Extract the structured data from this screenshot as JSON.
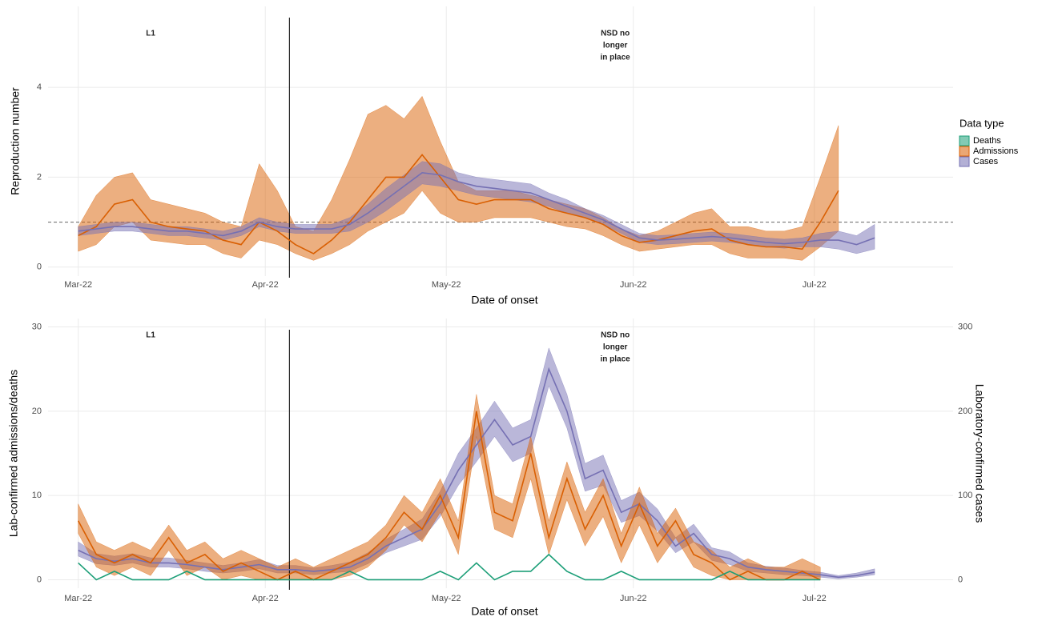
{
  "chart_data": [
    {
      "type": "line",
      "xlabel": "Date of onset",
      "ylabel": "Reproduction number",
      "x": [
        0,
        3,
        6,
        9,
        12,
        15,
        18,
        21,
        24,
        27,
        30,
        33,
        36,
        39,
        42,
        45,
        48,
        51,
        54,
        57,
        60,
        63,
        66,
        69,
        72,
        75,
        78,
        81,
        84,
        87,
        90,
        93,
        96,
        99,
        102,
        105,
        108,
        111,
        114,
        117,
        120,
        123,
        126,
        129,
        132
      ],
      "xlim": [
        -5,
        145
      ],
      "xticks": [
        {
          "value": 0,
          "label": "Mar-22"
        },
        {
          "value": 31,
          "label": "Apr-22"
        },
        {
          "value": 61,
          "label": "May-22"
        },
        {
          "value": 92,
          "label": "Jun-22"
        },
        {
          "value": 122,
          "label": "Jul-22"
        }
      ],
      "ylim": [
        -0.2,
        5.8
      ],
      "yticks": [
        0,
        2,
        4
      ],
      "grid": true,
      "hline": 1,
      "vline": 35,
      "annotations": [
        {
          "x": 12,
          "y": 5.2,
          "lines": [
            "L1"
          ]
        },
        {
          "x": 89,
          "y": 5.2,
          "lines": [
            "NSD no",
            "longer",
            "in place"
          ]
        }
      ],
      "legend": {
        "title": "Data type",
        "position": "right",
        "entries": [
          {
            "name": "Deaths",
            "color": "#1b9e77"
          },
          {
            "name": "Admissions",
            "color": "#d95f02"
          },
          {
            "name": "Cases",
            "color": "#7570b3"
          }
        ]
      },
      "series": [
        {
          "name": "Admissions",
          "color": "#d95f02",
          "values": [
            0.7,
            0.9,
            1.4,
            1.5,
            1.0,
            0.9,
            0.85,
            0.8,
            0.6,
            0.5,
            1.0,
            0.8,
            0.5,
            0.3,
            0.6,
            1.0,
            1.5,
            2.0,
            2.0,
            2.5,
            2.0,
            1.5,
            1.4,
            1.5,
            1.5,
            1.5,
            1.3,
            1.2,
            1.1,
            0.95,
            0.7,
            0.55,
            0.6,
            0.7,
            0.8,
            0.85,
            0.6,
            0.5,
            0.45,
            0.45,
            0.4,
            1.0,
            1.7,
            null,
            null
          ],
          "lower": [
            0.35,
            0.5,
            0.9,
            1.0,
            0.6,
            0.55,
            0.5,
            0.5,
            0.3,
            0.2,
            0.6,
            0.5,
            0.3,
            0.15,
            0.3,
            0.5,
            0.8,
            1.0,
            1.2,
            1.7,
            1.2,
            1.0,
            1.0,
            1.1,
            1.1,
            1.1,
            1.0,
            0.9,
            0.85,
            0.7,
            0.5,
            0.35,
            0.4,
            0.45,
            0.5,
            0.5,
            0.3,
            0.2,
            0.2,
            0.2,
            0.15,
            0.45,
            0.8,
            null,
            null
          ],
          "upper": [
            0.9,
            1.6,
            2.0,
            2.1,
            1.5,
            1.4,
            1.3,
            1.2,
            1.0,
            0.9,
            2.3,
            1.7,
            0.9,
            0.8,
            1.5,
            2.4,
            3.4,
            3.6,
            3.3,
            3.8,
            2.8,
            1.9,
            1.7,
            1.7,
            1.7,
            1.6,
            1.5,
            1.4,
            1.3,
            1.1,
            0.85,
            0.7,
            0.8,
            1.0,
            1.2,
            1.3,
            0.9,
            0.9,
            0.8,
            0.8,
            0.9,
            2.0,
            3.15,
            null,
            null
          ]
        },
        {
          "name": "Cases",
          "color": "#7570b3",
          "values": [
            0.8,
            0.85,
            0.9,
            0.9,
            0.85,
            0.8,
            0.8,
            0.75,
            0.7,
            0.8,
            1.0,
            0.9,
            0.85,
            0.85,
            0.85,
            0.95,
            1.2,
            1.5,
            1.8,
            2.1,
            2.05,
            1.9,
            1.8,
            1.75,
            1.7,
            1.65,
            1.5,
            1.35,
            1.2,
            1.05,
            0.85,
            0.65,
            0.6,
            0.62,
            0.65,
            0.68,
            0.65,
            0.6,
            0.55,
            0.52,
            0.55,
            0.6,
            0.6,
            0.5,
            0.65
          ],
          "lower": [
            0.7,
            0.75,
            0.8,
            0.8,
            0.75,
            0.7,
            0.7,
            0.65,
            0.6,
            0.7,
            0.9,
            0.8,
            0.75,
            0.75,
            0.75,
            0.8,
            1.0,
            1.25,
            1.55,
            1.85,
            1.8,
            1.7,
            1.6,
            1.55,
            1.5,
            1.45,
            1.35,
            1.2,
            1.1,
            0.95,
            0.75,
            0.55,
            0.5,
            0.52,
            0.55,
            0.58,
            0.55,
            0.5,
            0.45,
            0.42,
            0.45,
            0.45,
            0.4,
            0.3,
            0.4
          ],
          "upper": [
            0.9,
            0.95,
            1.0,
            1.0,
            0.95,
            0.9,
            0.9,
            0.85,
            0.8,
            0.9,
            1.1,
            1.0,
            0.95,
            0.95,
            0.95,
            1.1,
            1.4,
            1.75,
            2.05,
            2.35,
            2.3,
            2.1,
            2.0,
            1.95,
            1.9,
            1.85,
            1.65,
            1.5,
            1.3,
            1.15,
            0.95,
            0.75,
            0.7,
            0.72,
            0.75,
            0.78,
            0.75,
            0.7,
            0.65,
            0.62,
            0.65,
            0.75,
            0.8,
            0.7,
            0.95
          ]
        }
      ]
    },
    {
      "type": "line",
      "xlabel": "Date of onset",
      "ylabel": "Lab-confirmed admissions/deaths",
      "y2label": "Laboratory-confirmed cases",
      "x": [
        0,
        3,
        6,
        9,
        12,
        15,
        18,
        21,
        24,
        27,
        30,
        33,
        36,
        39,
        42,
        45,
        48,
        51,
        54,
        57,
        60,
        63,
        66,
        69,
        72,
        75,
        78,
        81,
        84,
        87,
        90,
        93,
        96,
        99,
        102,
        105,
        108,
        111,
        114,
        117,
        120,
        123,
        126,
        129,
        132
      ],
      "xlim": [
        -5,
        145
      ],
      "xticks": [
        {
          "value": 0,
          "label": "Mar-22"
        },
        {
          "value": 31,
          "label": "Apr-22"
        },
        {
          "value": 61,
          "label": "May-22"
        },
        {
          "value": 92,
          "label": "Jun-22"
        },
        {
          "value": 122,
          "label": "Jul-22"
        }
      ],
      "ylim": [
        -1,
        31
      ],
      "yticks": [
        0,
        10,
        20,
        30
      ],
      "y2lim": [
        -10,
        310
      ],
      "y2ticks": [
        0,
        100,
        200,
        300
      ],
      "grid": true,
      "vline": 35,
      "annotations": [
        {
          "x": 12,
          "y": 29,
          "lines": [
            "L1"
          ]
        },
        {
          "x": 89,
          "y": 29,
          "lines": [
            "NSD no",
            "longer",
            "in place"
          ]
        }
      ],
      "series": [
        {
          "name": "Cases",
          "color": "#7570b3",
          "axis": "y2",
          "values": [
            35,
            25,
            22,
            25,
            20,
            20,
            18,
            15,
            12,
            15,
            18,
            12,
            12,
            10,
            12,
            15,
            25,
            40,
            50,
            60,
            90,
            130,
            160,
            190,
            160,
            170,
            250,
            200,
            120,
            130,
            80,
            90,
            70,
            40,
            55,
            30,
            25,
            15,
            12,
            10,
            8,
            6,
            3,
            5,
            9
          ],
          "lower": [
            28,
            19,
            17,
            20,
            15,
            15,
            13,
            10,
            8,
            10,
            13,
            8,
            8,
            6,
            8,
            10,
            19,
            32,
            40,
            48,
            75,
            112,
            140,
            170,
            140,
            150,
            230,
            180,
            105,
            112,
            68,
            76,
            58,
            32,
            45,
            23,
            18,
            10,
            8,
            6,
            5,
            3,
            1,
            3,
            6
          ],
          "upper": [
            45,
            31,
            28,
            31,
            26,
            26,
            23,
            20,
            17,
            20,
            24,
            17,
            17,
            14,
            17,
            21,
            32,
            48,
            60,
            72,
            105,
            150,
            180,
            212,
            180,
            190,
            275,
            220,
            138,
            148,
            94,
            104,
            84,
            50,
            66,
            38,
            33,
            20,
            16,
            14,
            11,
            9,
            5,
            8,
            13
          ]
        },
        {
          "name": "Admissions",
          "color": "#d95f02",
          "values": [
            7,
            3,
            2,
            3,
            2,
            5,
            2,
            3,
            1,
            2,
            1,
            0,
            1,
            0,
            1,
            2,
            3,
            5,
            8,
            6,
            10,
            5,
            20,
            8,
            7,
            15,
            5,
            12,
            6,
            10,
            4,
            9,
            4,
            7,
            3,
            2,
            0,
            1,
            0,
            0,
            1,
            0,
            null,
            null,
            null
          ],
          "lower": [
            5.5,
            1.5,
            0.5,
            1.5,
            0.5,
            3.5,
            0.5,
            1.5,
            0,
            0.5,
            0,
            0,
            0,
            0,
            0,
            0.5,
            1.5,
            3.5,
            6.5,
            4.5,
            8,
            3,
            17,
            6,
            5,
            12,
            3,
            9.5,
            4,
            7.5,
            2,
            6.5,
            2,
            5,
            1.5,
            0.5,
            0,
            0,
            0,
            0,
            0,
            0,
            null,
            null,
            null
          ],
          "upper": [
            9,
            4.5,
            3.5,
            4.5,
            3.5,
            6.5,
            3.5,
            4.5,
            2.5,
            3.5,
            2.5,
            1.5,
            2.5,
            1.5,
            2.5,
            3.5,
            4.5,
            6.5,
            10,
            8,
            12,
            7,
            22,
            10,
            9,
            17,
            7,
            14,
            8,
            12,
            5.5,
            11,
            5.5,
            8.5,
            4.5,
            3.5,
            1.5,
            2.5,
            1.5,
            1.5,
            2.5,
            1.5,
            null,
            null,
            null
          ]
        },
        {
          "name": "Deaths",
          "color": "#1b9e77",
          "values": [
            2,
            0,
            1,
            0,
            0,
            0,
            1,
            0,
            0,
            0,
            0,
            0,
            0,
            0,
            0,
            1,
            0,
            0,
            0,
            0,
            1,
            0,
            2,
            0,
            1,
            1,
            3,
            1,
            0,
            0,
            1,
            0,
            0,
            0,
            0,
            0,
            1,
            0,
            0,
            0,
            0,
            0,
            null,
            null,
            null
          ]
        }
      ]
    }
  ]
}
